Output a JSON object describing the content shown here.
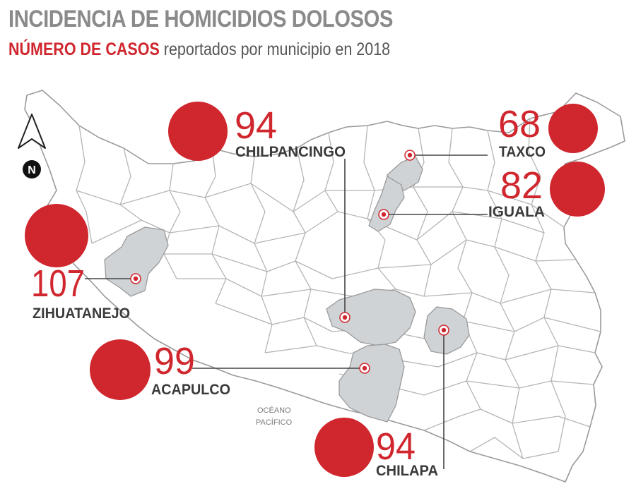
{
  "title": "INCIDENCIA DE HOMICIDIOS DOLOSOS",
  "subtitle": {
    "highlight": "NÚMERO DE CASOS",
    "rest": " reportados por municipio en 2018"
  },
  "north_label": "N",
  "ocean_label": [
    "OCÉANO",
    "PACÍFICO"
  ],
  "colors": {
    "accent": "#d0262e",
    "title": "#8a8a8a",
    "label": "#3a3a3a",
    "highlight_region": "#cfd3d6",
    "border": "#a8a8a8"
  },
  "municipalities": [
    {
      "name": "CHILPANCINGO",
      "cases": "94"
    },
    {
      "name": "TAXCO",
      "cases": "68"
    },
    {
      "name": "IGUALA",
      "cases": "82"
    },
    {
      "name": "ZIHUATANEJO",
      "cases": "107"
    },
    {
      "name": "ACAPULCO",
      "cases": "99"
    },
    {
      "name": "CHILAPA",
      "cases": "94"
    }
  ]
}
